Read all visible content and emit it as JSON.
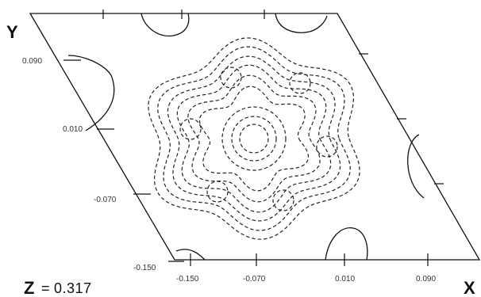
{
  "axes": {
    "x_title": "X",
    "y_title": "Y",
    "x_ticks": [
      "-0.150",
      "-0.070",
      "0.010",
      "0.090"
    ],
    "y_ticks": [
      "0.090",
      "0.010",
      "-0.070",
      "-0.150"
    ]
  },
  "section": {
    "variable": "Z",
    "equals": "=",
    "value": "0.317"
  }
}
